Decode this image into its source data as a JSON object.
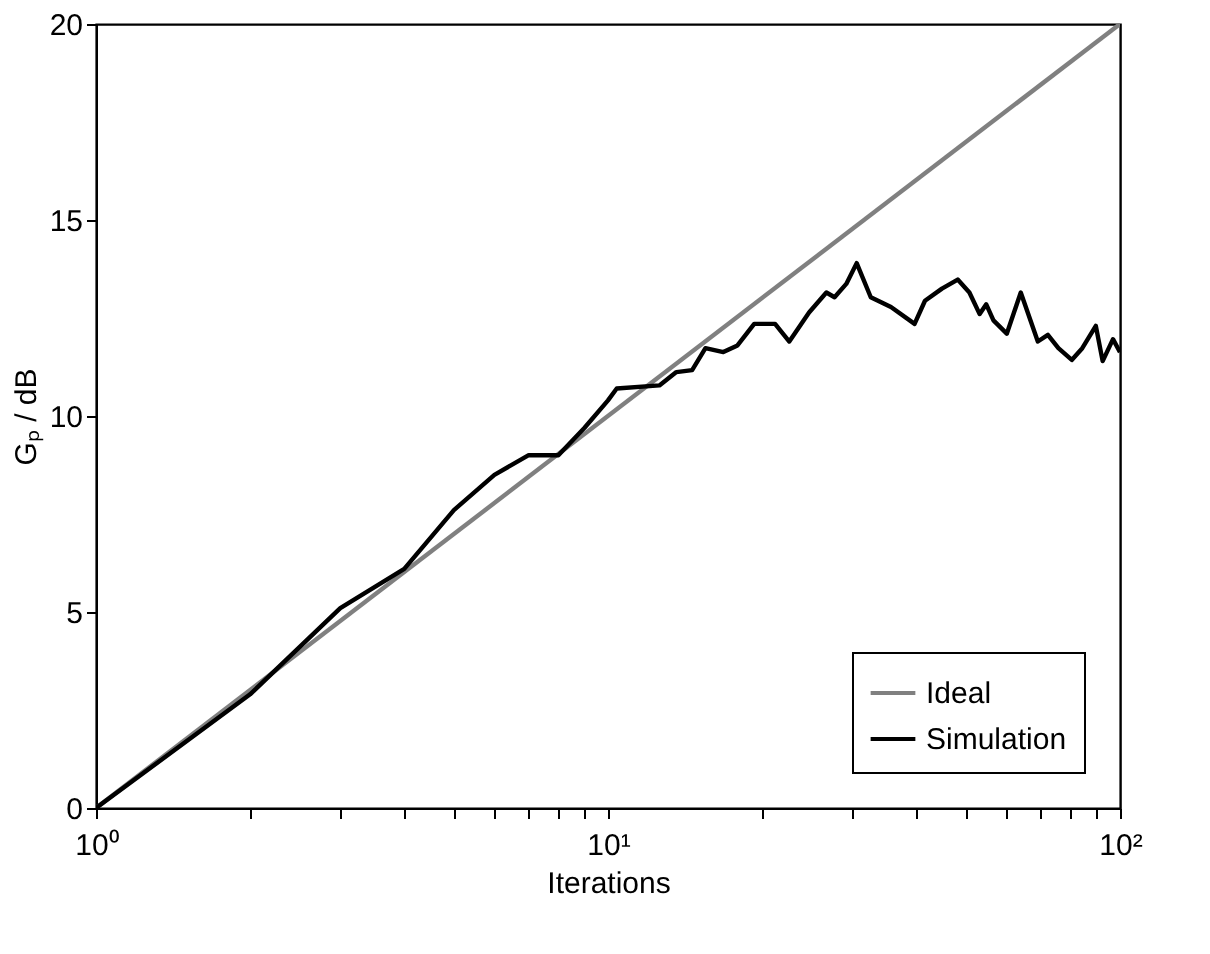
{
  "chart_data": {
    "type": "line",
    "xlabel": "Iterations",
    "ylabel": "Gₚ / dB",
    "log": "x",
    "grid": false,
    "legend": "bottom right",
    "line_style": "solid",
    "marker": "none",
    "xlim": [
      1,
      100
    ],
    "ylim": [
      0,
      20
    ],
    "xticks": [
      {
        "value": 1,
        "label": "10⁰"
      },
      {
        "value": 2,
        "label": null
      },
      {
        "value": 3,
        "label": null
      },
      {
        "value": 4,
        "label": null
      },
      {
        "value": 5,
        "label": null
      },
      {
        "value": 6,
        "label": null
      },
      {
        "value": 7,
        "label": null
      },
      {
        "value": 8,
        "label": null
      },
      {
        "value": 9,
        "label": null
      },
      {
        "value": 10,
        "label": "10¹"
      },
      {
        "value": 20,
        "label": null
      },
      {
        "value": 30,
        "label": null
      },
      {
        "value": 40,
        "label": null
      },
      {
        "value": 50,
        "label": null
      },
      {
        "value": 60,
        "label": null
      },
      {
        "value": 70,
        "label": null
      },
      {
        "value": 80,
        "label": null
      },
      {
        "value": 90,
        "label": null
      },
      {
        "value": 100,
        "label": "10²"
      }
    ],
    "yticks": [
      0,
      5,
      10,
      15,
      20
    ],
    "series": [
      {
        "name": "Ideal",
        "color": "#808080",
        "x": [
          1,
          100
        ],
        "values": [
          0,
          20
        ]
      },
      {
        "name": "Simulation",
        "color": "#000000",
        "x": [
          1,
          2,
          3,
          4,
          5,
          6,
          7,
          8,
          9,
          10,
          10.4,
          12.6,
          13.6,
          14.6,
          15.5,
          16.8,
          17.9,
          19.3,
          21.2,
          22.6,
          24.7,
          26.7,
          27.7,
          29.2,
          30.6,
          32.6,
          35.7,
          39.7,
          41.6,
          44.9,
          48.2,
          50.8,
          53.2,
          54.8,
          56.6,
          60.1,
          64,
          69.1,
          72.3,
          75.8,
          80.5,
          84.4,
          89.7,
          92.5,
          96.9,
          100
        ],
        "values": [
          0,
          2.9,
          5.1,
          6.1,
          7.6,
          8.5,
          9.0,
          9.0,
          9.7,
          10.4,
          10.7,
          10.78,
          11.12,
          11.17,
          11.73,
          11.63,
          11.8,
          12.35,
          12.35,
          11.9,
          12.64,
          13.15,
          13.03,
          13.37,
          13.9,
          13.03,
          12.78,
          12.35,
          12.94,
          13.25,
          13.48,
          13.15,
          12.6,
          12.85,
          12.44,
          12.1,
          13.15,
          11.9,
          12.07,
          11.73,
          11.43,
          11.73,
          12.3,
          11.4,
          11.96,
          11.63
        ]
      }
    ]
  }
}
